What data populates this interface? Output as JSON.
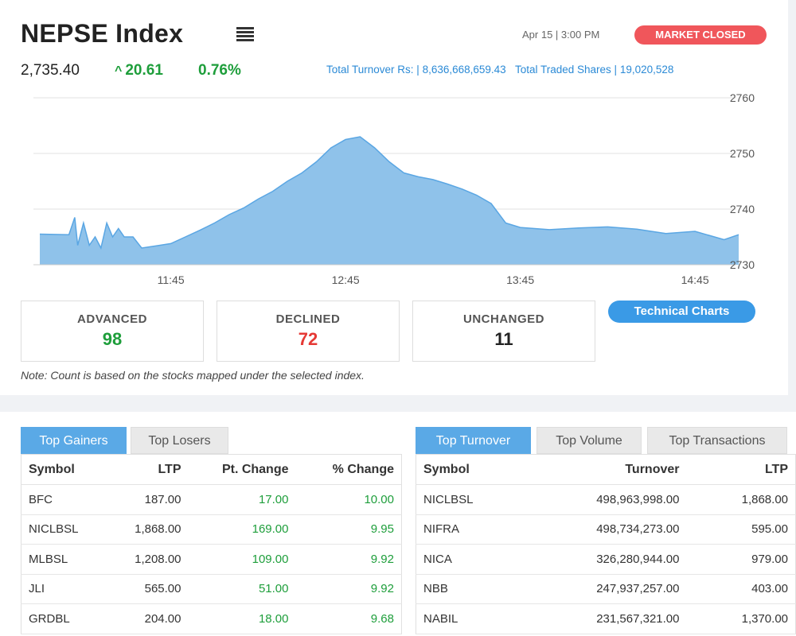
{
  "header": {
    "title": "NEPSE Index",
    "datetime": "Apr 15 | 3:00 PM",
    "status": "MARKET CLOSED",
    "index_value": "2,735.40",
    "change": "20.61",
    "change_pct": "0.76%",
    "turnover_label": "Total Turnover Rs: |",
    "turnover_value": "8,636,668,659.43",
    "shares_label": "Total Traded Shares |",
    "shares_value": "19,020,528"
  },
  "colors": {
    "accent": "#3a9ae6",
    "up": "#1e9e3b",
    "down": "#e53935",
    "closed_badge": "#f0565b",
    "area_fill": "#8fc2ea"
  },
  "chart_data": {
    "type": "area",
    "x_ticks": [
      "11:45",
      "12:45",
      "13:45",
      "14:45"
    ],
    "y_ticks": [
      2760,
      2750,
      2740,
      2730
    ],
    "ylim": [
      2730,
      2760
    ],
    "grid": true,
    "x_start": "11:00",
    "x_end": "15:00",
    "series": [
      {
        "points": [
          [
            "11:00",
            2735.5
          ],
          [
            "11:10",
            2735.4
          ],
          [
            "11:12",
            2738.5
          ],
          [
            "11:13",
            2733.5
          ],
          [
            "11:15",
            2737.5
          ],
          [
            "11:17",
            2733.5
          ],
          [
            "11:19",
            2735.0
          ],
          [
            "11:21",
            2733.0
          ],
          [
            "11:23",
            2737.5
          ],
          [
            "11:25",
            2735.0
          ],
          [
            "11:27",
            2736.5
          ],
          [
            "11:29",
            2735.0
          ],
          [
            "11:32",
            2735.0
          ],
          [
            "11:35",
            2733.0
          ],
          [
            "11:40",
            2733.4
          ],
          [
            "11:45",
            2733.8
          ],
          [
            "11:50",
            2735.0
          ],
          [
            "11:55",
            2736.2
          ],
          [
            "12:00",
            2737.5
          ],
          [
            "12:05",
            2739.0
          ],
          [
            "12:10",
            2740.2
          ],
          [
            "12:15",
            2741.8
          ],
          [
            "12:20",
            2743.2
          ],
          [
            "12:25",
            2745.0
          ],
          [
            "12:30",
            2746.5
          ],
          [
            "12:35",
            2748.5
          ],
          [
            "12:40",
            2751.0
          ],
          [
            "12:45",
            2752.5
          ],
          [
            "12:50",
            2753.0
          ],
          [
            "12:55",
            2751.0
          ],
          [
            "13:00",
            2748.5
          ],
          [
            "13:05",
            2746.5
          ],
          [
            "13:10",
            2745.8
          ],
          [
            "13:15",
            2745.3
          ],
          [
            "13:20",
            2744.5
          ],
          [
            "13:25",
            2743.6
          ],
          [
            "13:30",
            2742.5
          ],
          [
            "13:35",
            2741.0
          ],
          [
            "13:40",
            2737.5
          ],
          [
            "13:45",
            2736.7
          ],
          [
            "13:55",
            2736.3
          ],
          [
            "14:05",
            2736.6
          ],
          [
            "14:15",
            2736.8
          ],
          [
            "14:25",
            2736.4
          ],
          [
            "14:35",
            2735.6
          ],
          [
            "14:45",
            2736.0
          ],
          [
            "14:55",
            2734.5
          ],
          [
            "15:00",
            2735.4
          ]
        ]
      }
    ]
  },
  "breadth": {
    "advanced_label": "ADVANCED",
    "advanced": "98",
    "declined_label": "DECLINED",
    "declined": "72",
    "unchanged_label": "UNCHANGED",
    "unchanged": "11",
    "technical_charts": "Technical Charts",
    "note": "Note: Count is based on the stocks mapped under the selected index."
  },
  "gainers": {
    "tabs": [
      "Top Gainers",
      "Top Losers"
    ],
    "columns": [
      "Symbol",
      "LTP",
      "Pt. Change",
      "% Change"
    ],
    "rows": [
      [
        "BFC",
        "187.00",
        "17.00",
        "10.00"
      ],
      [
        "NICLBSL",
        "1,868.00",
        "169.00",
        "9.95"
      ],
      [
        "MLBSL",
        "1,208.00",
        "109.00",
        "9.92"
      ],
      [
        "JLI",
        "565.00",
        "51.00",
        "9.92"
      ],
      [
        "GRDBL",
        "204.00",
        "18.00",
        "9.68"
      ]
    ]
  },
  "turnover": {
    "tabs": [
      "Top Turnover",
      "Top Volume",
      "Top Transactions"
    ],
    "columns": [
      "Symbol",
      "Turnover",
      "LTP"
    ],
    "rows": [
      [
        "NICLBSL",
        "498,963,998.00",
        "1,868.00"
      ],
      [
        "NIFRA",
        "498,734,273.00",
        "595.00"
      ],
      [
        "NICA",
        "326,280,944.00",
        "979.00"
      ],
      [
        "NBB",
        "247,937,257.00",
        "403.00"
      ],
      [
        "NABIL",
        "231,567,321.00",
        "1,370.00"
      ]
    ]
  }
}
